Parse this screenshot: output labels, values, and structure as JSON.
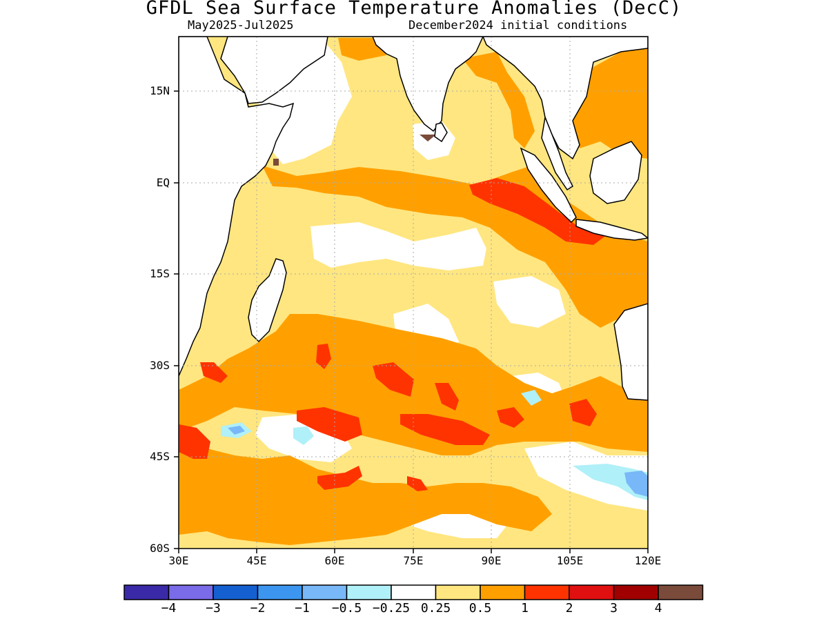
{
  "title": "GFDL Sea Surface Temperature Anomalies (DecC)",
  "subtitle_left": "May2025-Jul2025",
  "subtitle_right": "December2024 initial conditions",
  "map": {
    "lon_range": [
      30,
      120
    ],
    "lat_range": [
      -60,
      24
    ],
    "lat_ticks": [
      "15N",
      "EQ",
      "15S",
      "30S",
      "45S",
      "60S"
    ],
    "lon_ticks": [
      "30E",
      "45E",
      "60E",
      "75E",
      "90E",
      "105E",
      "120E"
    ],
    "grid": true,
    "colors": {
      "weak_warm": "#ffe680",
      "moderate_warm": "#ffa000",
      "strong_warm": "#ff3300",
      "very_strong": "#e01010",
      "weak_cool": "#b0f0f8",
      "cool": "#78b8f8",
      "peak_warm": "#7a4a3a"
    }
  },
  "colorbar": {
    "colors": [
      "#3a2aa8",
      "#7a6be8",
      "#1460d0",
      "#3c96f0",
      "#78b8f8",
      "#b0f0f8",
      "#ffffff",
      "#ffe680",
      "#ffa000",
      "#ff3300",
      "#e01010",
      "#a00000",
      "#7a4a3a"
    ],
    "labels": [
      "-4",
      "-3",
      "-2",
      "-1",
      "-0.5",
      "-0.25",
      "0.25",
      "0.5",
      "1",
      "2",
      "3",
      "4"
    ]
  }
}
